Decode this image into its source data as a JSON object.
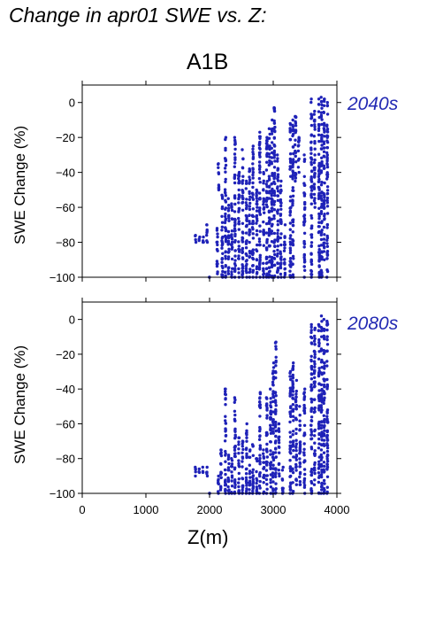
{
  "title": "Change in apr01 SWE vs. Z:",
  "scenario": "A1B",
  "xlabel": "Z(m)",
  "colors": {
    "points": "#1f22b8",
    "period": "#2229b3"
  },
  "chart_data": [
    {
      "type": "scatter",
      "period": "2040s",
      "ylabel": "SWE Change (%)",
      "xlim": [
        0,
        4000
      ],
      "ylim": [
        -100,
        10
      ],
      "xticks": [
        0,
        1000,
        2000,
        3000,
        4000
      ],
      "yticks": [
        -100,
        -80,
        -60,
        -40,
        -20,
        0
      ],
      "xtick_labels": [],
      "ytick_labels": [
        "−100",
        "−80",
        "−60",
        "−40",
        "−20",
        "0"
      ],
      "grid": false,
      "columns": [
        {
          "x": 1780,
          "ymin": -80,
          "ymax": -76
        },
        {
          "x": 1840,
          "ymin": -79,
          "ymax": -77
        },
        {
          "x": 1900,
          "ymin": -80,
          "ymax": -77
        },
        {
          "x": 1960,
          "ymin": -80,
          "ymax": -70
        },
        {
          "x": 2000,
          "ymin": -100,
          "ymax": -100
        },
        {
          "x": 2120,
          "ymin": -98,
          "ymax": -72
        },
        {
          "x": 2140,
          "ymin": -50,
          "ymax": -35
        },
        {
          "x": 2200,
          "ymin": -100,
          "ymax": -53
        },
        {
          "x": 2250,
          "ymin": -100,
          "ymax": -20
        },
        {
          "x": 2300,
          "ymin": -98,
          "ymax": -55
        },
        {
          "x": 2350,
          "ymin": -100,
          "ymax": -58
        },
        {
          "x": 2400,
          "ymin": -100,
          "ymax": -20
        },
        {
          "x": 2460,
          "ymin": -100,
          "ymax": -40
        },
        {
          "x": 2520,
          "ymin": -100,
          "ymax": -27
        },
        {
          "x": 2580,
          "ymin": -100,
          "ymax": -45
        },
        {
          "x": 2630,
          "ymin": -100,
          "ymax": -38
        },
        {
          "x": 2680,
          "ymin": -100,
          "ymax": -25
        },
        {
          "x": 2740,
          "ymin": -100,
          "ymax": -50
        },
        {
          "x": 2790,
          "ymin": -100,
          "ymax": -17
        },
        {
          "x": 2850,
          "ymin": -100,
          "ymax": -40
        },
        {
          "x": 2900,
          "ymin": -100,
          "ymax": -20
        },
        {
          "x": 2940,
          "ymin": -100,
          "ymax": -15
        },
        {
          "x": 2980,
          "ymin": -100,
          "ymax": -10
        },
        {
          "x": 3020,
          "ymin": -100,
          "ymax": -3
        },
        {
          "x": 3070,
          "ymin": -100,
          "ymax": -30
        },
        {
          "x": 3120,
          "ymin": -100,
          "ymax": -45
        },
        {
          "x": 3180,
          "ymin": -100,
          "ymax": -70
        },
        {
          "x": 3270,
          "ymin": -100,
          "ymax": -12
        },
        {
          "x": 3310,
          "ymin": -100,
          "ymax": -10
        },
        {
          "x": 3350,
          "ymin": -45,
          "ymax": -8
        },
        {
          "x": 3400,
          "ymin": -40,
          "ymax": -20
        },
        {
          "x": 3490,
          "ymin": -100,
          "ymax": -30
        },
        {
          "x": 3600,
          "ymin": -100,
          "ymax": 2
        },
        {
          "x": 3650,
          "ymin": -60,
          "ymax": -5
        },
        {
          "x": 3720,
          "ymin": -100,
          "ymax": 2
        },
        {
          "x": 3760,
          "ymin": -100,
          "ymax": 3
        },
        {
          "x": 3800,
          "ymin": -90,
          "ymax": 2
        },
        {
          "x": 3850,
          "ymin": -100,
          "ymax": 0
        }
      ]
    },
    {
      "type": "scatter",
      "period": "2080s",
      "ylabel": "SWE Change (%)",
      "xlim": [
        0,
        4000
      ],
      "ylim": [
        -100,
        10
      ],
      "xticks": [
        0,
        1000,
        2000,
        3000,
        4000
      ],
      "yticks": [
        -100,
        -80,
        -60,
        -40,
        -20,
        0
      ],
      "xtick_labels": [
        "0",
        "1000",
        "2000",
        "3000",
        "4000"
      ],
      "ytick_labels": [
        "−100",
        "−80",
        "−60",
        "−40",
        "−20",
        "0"
      ],
      "grid": false,
      "columns": [
        {
          "x": 1780,
          "ymin": -90,
          "ymax": -85
        },
        {
          "x": 1840,
          "ymin": -88,
          "ymax": -86
        },
        {
          "x": 1900,
          "ymin": -88,
          "ymax": -85
        },
        {
          "x": 1960,
          "ymin": -90,
          "ymax": -85
        },
        {
          "x": 2000,
          "ymin": -100,
          "ymax": -100
        },
        {
          "x": 2140,
          "ymin": -100,
          "ymax": -90
        },
        {
          "x": 2180,
          "ymin": -98,
          "ymax": -75
        },
        {
          "x": 2250,
          "ymin": -100,
          "ymax": -40
        },
        {
          "x": 2300,
          "ymin": -100,
          "ymax": -78
        },
        {
          "x": 2350,
          "ymin": -100,
          "ymax": -80
        },
        {
          "x": 2400,
          "ymin": -100,
          "ymax": -45
        },
        {
          "x": 2460,
          "ymin": -100,
          "ymax": -68
        },
        {
          "x": 2520,
          "ymin": -100,
          "ymax": -70
        },
        {
          "x": 2580,
          "ymin": -100,
          "ymax": -60
        },
        {
          "x": 2630,
          "ymin": -100,
          "ymax": -75
        },
        {
          "x": 2680,
          "ymin": -100,
          "ymax": -72
        },
        {
          "x": 2740,
          "ymin": -100,
          "ymax": -80
        },
        {
          "x": 2790,
          "ymin": -100,
          "ymax": -42
        },
        {
          "x": 2850,
          "ymin": -100,
          "ymax": -75
        },
        {
          "x": 2900,
          "ymin": -100,
          "ymax": -45
        },
        {
          "x": 2960,
          "ymin": -100,
          "ymax": -40
        },
        {
          "x": 3000,
          "ymin": -100,
          "ymax": -25
        },
        {
          "x": 3040,
          "ymin": -100,
          "ymax": -13
        },
        {
          "x": 3090,
          "ymin": -90,
          "ymax": -60
        },
        {
          "x": 3150,
          "ymin": -100,
          "ymax": -85
        },
        {
          "x": 3270,
          "ymin": -100,
          "ymax": -30
        },
        {
          "x": 3310,
          "ymin": -100,
          "ymax": -25
        },
        {
          "x": 3360,
          "ymin": -95,
          "ymax": -35
        },
        {
          "x": 3420,
          "ymin": -95,
          "ymax": -50
        },
        {
          "x": 3490,
          "ymin": -100,
          "ymax": -40
        },
        {
          "x": 3600,
          "ymin": -100,
          "ymax": -3
        },
        {
          "x": 3650,
          "ymin": -95,
          "ymax": -5
        },
        {
          "x": 3720,
          "ymin": -100,
          "ymax": -3
        },
        {
          "x": 3760,
          "ymin": -100,
          "ymax": 2
        },
        {
          "x": 3800,
          "ymin": -100,
          "ymax": 0
        },
        {
          "x": 3850,
          "ymin": -100,
          "ymax": -1
        }
      ]
    }
  ]
}
